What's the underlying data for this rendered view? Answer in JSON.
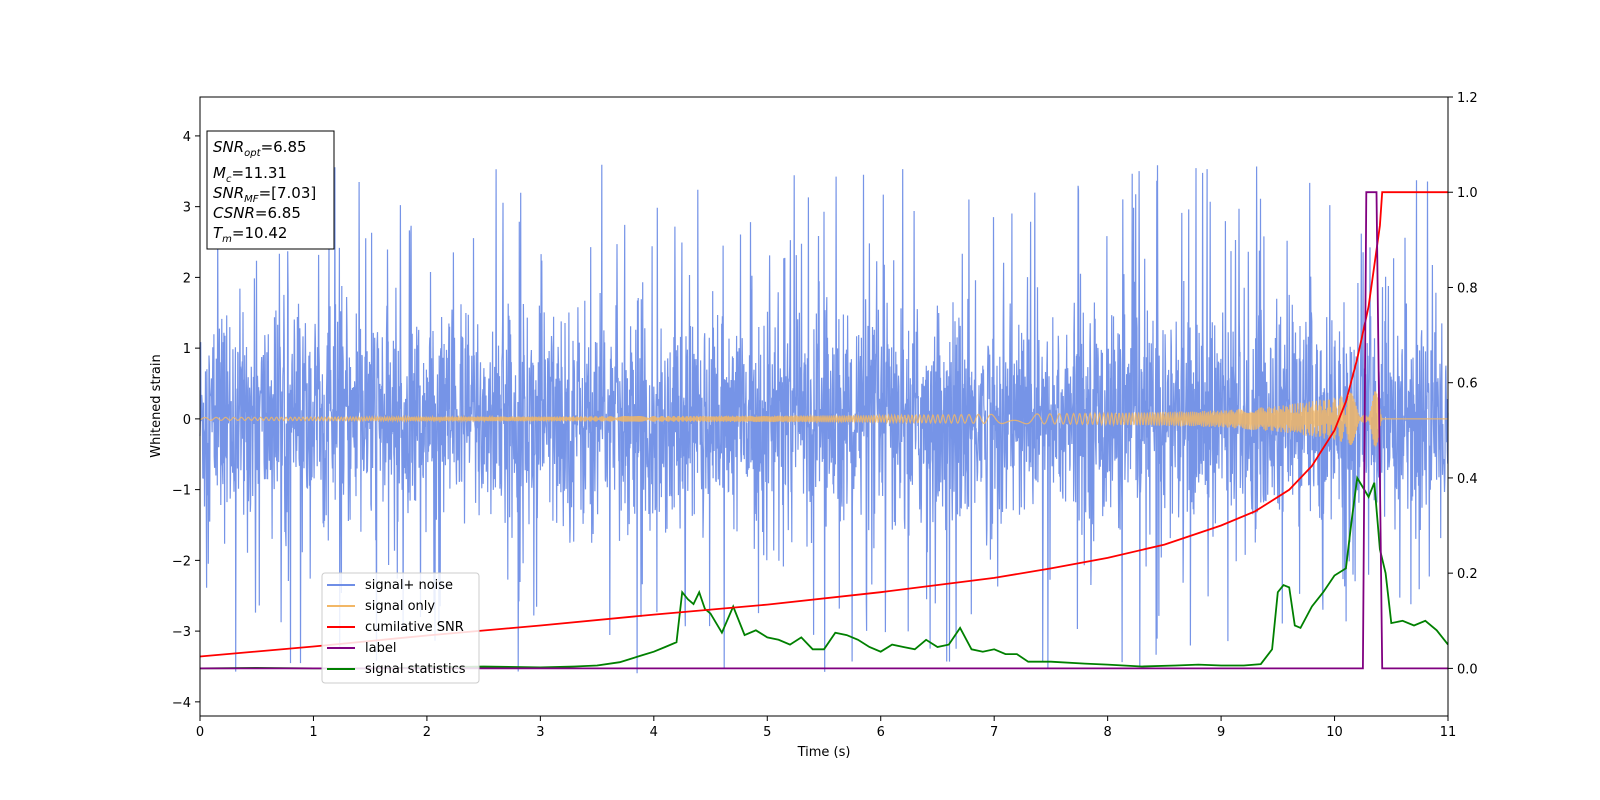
{
  "chart_data": {
    "type": "line",
    "xlabel": "Time (s)",
    "ylabel": "Whitened strain",
    "xlim": [
      0,
      11
    ],
    "ylim_left": [
      -4.2,
      4.55
    ],
    "ylim_right": [
      -0.1,
      1.2
    ],
    "x_ticks": [
      "0",
      "1",
      "2",
      "3",
      "4",
      "5",
      "6",
      "7",
      "8",
      "9",
      "10",
      "11"
    ],
    "y_ticks_left": [
      "−4",
      "−3",
      "−2",
      "−1",
      "0",
      "1",
      "2",
      "3",
      "4"
    ],
    "y_ticks_right": [
      "0.0",
      "0.2",
      "0.4",
      "0.6",
      "0.8",
      "1.0",
      "1.2"
    ],
    "grid": false,
    "legend_position": "lower-left",
    "annotation": {
      "lines": [
        {
          "sym": "SNR",
          "sub": "opt",
          "val": "=6.85"
        },
        {
          "sym": "M",
          "sub": "c",
          "val": "=11.31"
        },
        {
          "sym": "SNR",
          "sub": "MF",
          "val": "=[7.03]"
        },
        {
          "sym": "CSNR",
          "sub": "",
          "val": "=6.85"
        },
        {
          "sym": "T",
          "sub": "m",
          "val": "=10.42"
        }
      ]
    },
    "series": [
      {
        "name": "signal+ noise",
        "color": "#6f8ee6",
        "axis": "left",
        "description": "noise band std ~0.8, peaks up to ~4.2 and down to ~-3.8",
        "envelope_hi": 2.4,
        "envelope_lo": -2.3,
        "max": 4.18,
        "min": -3.8
      },
      {
        "name": "signal only",
        "color": "#f2b766",
        "axis": "left",
        "x": [
          0,
          2,
          4,
          6,
          8,
          9,
          9.5,
          10,
          10.2,
          10.35,
          10.42,
          11
        ],
        "amplitude": [
          0.02,
          0.03,
          0.04,
          0.05,
          0.08,
          0.12,
          0.18,
          0.3,
          0.4,
          0.55,
          0.0,
          0.0
        ]
      },
      {
        "name": "cumilative SNR",
        "color": "#ff0000",
        "axis": "right",
        "x": [
          0,
          1,
          2,
          3,
          4,
          5,
          6,
          7,
          7.5,
          8,
          8.5,
          9,
          9.3,
          9.6,
          9.8,
          10,
          10.1,
          10.2,
          10.3,
          10.4,
          10.42,
          11
        ],
        "values": [
          0.025,
          0.046,
          0.069,
          0.09,
          0.113,
          0.134,
          0.16,
          0.19,
          0.21,
          0.232,
          0.26,
          0.3,
          0.33,
          0.375,
          0.425,
          0.5,
          0.56,
          0.65,
          0.76,
          0.93,
          1.0,
          1.0
        ]
      },
      {
        "name": "label",
        "color": "#800080",
        "axis": "right",
        "x": [
          0,
          10.25,
          10.28,
          10.37,
          10.42,
          11
        ],
        "values": [
          0,
          0,
          1,
          1,
          0,
          0
        ]
      },
      {
        "name": "signal statistics",
        "color": "#008000",
        "axis": "right",
        "x": [
          0,
          0.5,
          1,
          1.5,
          2,
          2.5,
          3,
          3.3,
          3.5,
          3.7,
          3.9,
          4.0,
          4.1,
          4.2,
          4.25,
          4.3,
          4.35,
          4.4,
          4.45,
          4.5,
          4.6,
          4.7,
          4.8,
          4.9,
          5.0,
          5.1,
          5.2,
          5.3,
          5.4,
          5.5,
          5.6,
          5.7,
          5.8,
          5.9,
          6.0,
          6.1,
          6.2,
          6.3,
          6.4,
          6.5,
          6.6,
          6.7,
          6.8,
          6.9,
          7.0,
          7.1,
          7.2,
          7.3,
          7.5,
          7.8,
          8.0,
          8.3,
          8.6,
          8.8,
          9.0,
          9.2,
          9.35,
          9.45,
          9.5,
          9.55,
          9.6,
          9.65,
          9.7,
          9.8,
          9.9,
          10.0,
          10.1,
          10.15,
          10.2,
          10.25,
          10.3,
          10.35,
          10.4,
          10.45,
          10.5,
          10.6,
          10.7,
          10.8,
          10.9,
          11
        ],
        "values": [
          0.0,
          0.001,
          0.0,
          0.0,
          0.002,
          0.004,
          0.002,
          0.004,
          0.006,
          0.013,
          0.028,
          0.035,
          0.045,
          0.055,
          0.16,
          0.145,
          0.135,
          0.16,
          0.125,
          0.115,
          0.075,
          0.13,
          0.07,
          0.08,
          0.065,
          0.06,
          0.05,
          0.065,
          0.04,
          0.04,
          0.075,
          0.07,
          0.06,
          0.045,
          0.035,
          0.05,
          0.045,
          0.04,
          0.06,
          0.045,
          0.05,
          0.085,
          0.04,
          0.035,
          0.04,
          0.03,
          0.03,
          0.014,
          0.014,
          0.01,
          0.008,
          0.004,
          0.006,
          0.008,
          0.006,
          0.006,
          0.009,
          0.04,
          0.16,
          0.175,
          0.17,
          0.09,
          0.085,
          0.13,
          0.16,
          0.195,
          0.21,
          0.31,
          0.4,
          0.38,
          0.36,
          0.39,
          0.25,
          0.2,
          0.095,
          0.1,
          0.09,
          0.1,
          0.08,
          0.05
        ]
      }
    ]
  }
}
